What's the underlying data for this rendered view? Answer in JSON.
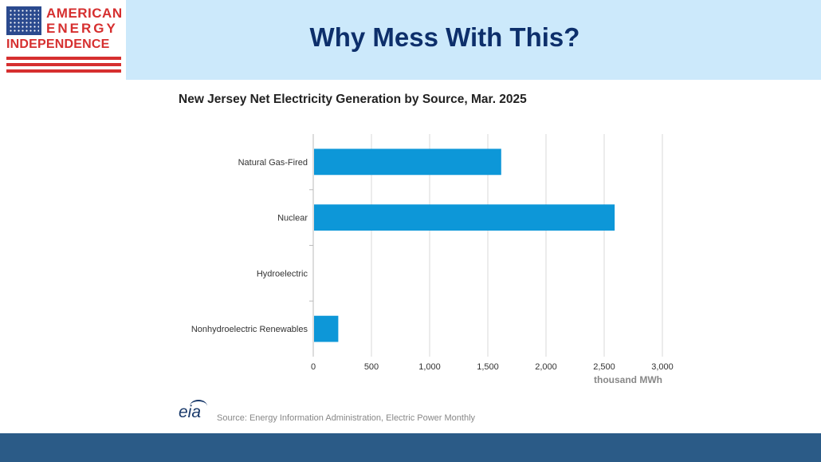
{
  "logo": {
    "line1": "AMERICAN",
    "line2": "ENERGY",
    "line3": "INDEPENDENCE"
  },
  "slide": {
    "title": "Why Mess With This?"
  },
  "colors": {
    "header_band": "#cce9fb",
    "title": "#0d2f6b",
    "bar": "#0d97d8",
    "footer_band": "#2b5b87",
    "logo_red": "#d62f2f",
    "flag_blue": "#2b4a8e"
  },
  "chart_data": {
    "type": "bar",
    "orientation": "horizontal",
    "title": "New Jersey Net Electricity Generation by Source, Mar. 2025",
    "categories": [
      "Natural Gas-Fired",
      "Nuclear",
      "Hydroelectric",
      "Nonhydroelectric Renewables"
    ],
    "values": [
      1615,
      2590,
      0,
      215
    ],
    "xlabel": "thousand MWh",
    "xlim": [
      0,
      3000
    ],
    "x_ticks": [
      0,
      500,
      1000,
      1500,
      2000,
      2500,
      3000
    ],
    "x_tick_labels": [
      "0",
      "500",
      "1,000",
      "1,500",
      "2,000",
      "2,500",
      "3,000"
    ],
    "grid": true,
    "legend": "none"
  },
  "source": {
    "logo_text": "eia",
    "text": "Source: Energy Information Administration, Electric Power Monthly"
  }
}
